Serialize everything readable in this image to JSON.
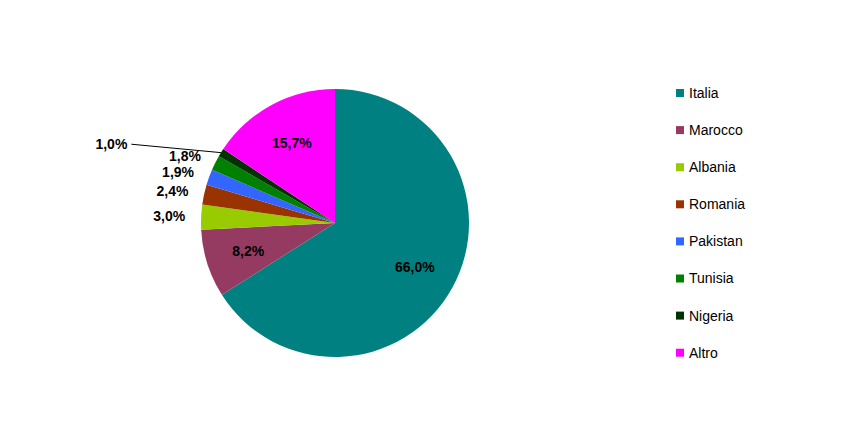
{
  "chart_data": {
    "type": "pie",
    "categories": [
      "Italia",
      "Marocco",
      "Albania",
      "Romania",
      "Pakistan",
      "Tunisia",
      "Nigeria",
      "Altro"
    ],
    "values": [
      66.0,
      8.2,
      3.0,
      2.4,
      1.9,
      1.8,
      1.0,
      15.7
    ],
    "value_labels": [
      "66,0%",
      "8,2%",
      "3,0%",
      "2,4%",
      "1,9%",
      "1,8%",
      "1,0%",
      "15,7%"
    ],
    "colors": [
      "#008080",
      "#953b62",
      "#99cc00",
      "#993300",
      "#3366ff",
      "#008000",
      "#003300",
      "#ff00ff"
    ],
    "data_labels": true,
    "legend": "right"
  }
}
